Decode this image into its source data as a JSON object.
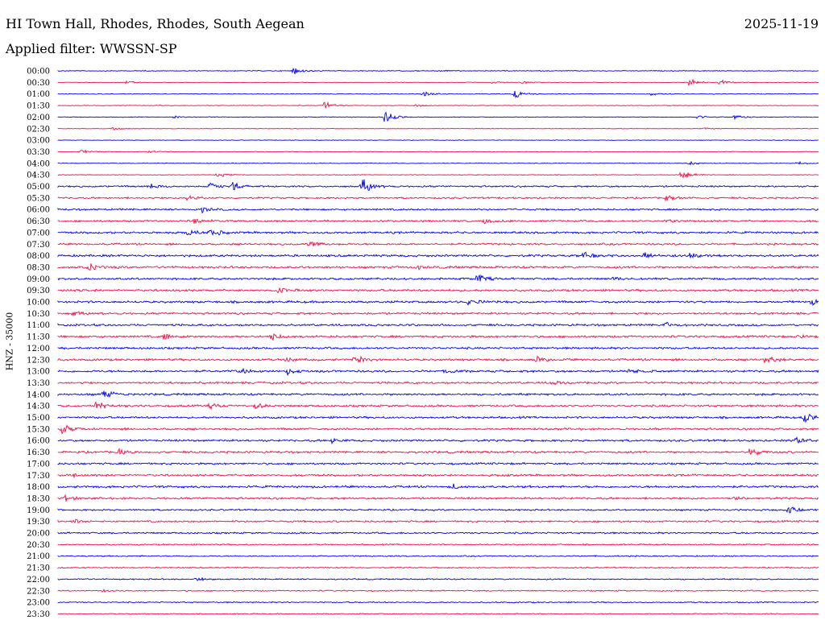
{
  "header": {
    "station": "HI Town Hall, Rhodes, Rhodes, South Aegean",
    "date": "2025-11-19",
    "filter": "Applied filter: WWSSN-SP"
  },
  "channel_label": "HNZ - 35000",
  "colors": {
    "odd_trace": "#0000ee",
    "even_trace": "#ee1144",
    "background": "#ffffff",
    "text": "#000000"
  },
  "chart_data": {
    "type": "line",
    "subtype": "helicorder",
    "ylabel": "HNZ - 35000",
    "rows": [
      {
        "label": "00:00",
        "color": "#0000ee",
        "noise": 0.6,
        "events": [
          {
            "x": 0.31,
            "a": 5
          },
          {
            "x": 0.5,
            "a": 1.5
          }
        ]
      },
      {
        "label": "00:30",
        "color": "#ee1144",
        "noise": 0.4,
        "events": [
          {
            "x": 0.09,
            "a": 2.5
          },
          {
            "x": 0.57,
            "a": 2
          },
          {
            "x": 0.61,
            "a": 2.5
          },
          {
            "x": 0.83,
            "a": 6
          },
          {
            "x": 0.87,
            "a": 6
          }
        ]
      },
      {
        "label": "01:00",
        "color": "#0000ee",
        "noise": 0.5,
        "events": [
          {
            "x": 0.48,
            "a": 4
          },
          {
            "x": 0.6,
            "a": 9
          },
          {
            "x": 0.78,
            "a": 2
          }
        ]
      },
      {
        "label": "01:30",
        "color": "#ee1144",
        "noise": 0.5,
        "events": [
          {
            "x": 0.35,
            "a": 6
          },
          {
            "x": 0.47,
            "a": 2
          }
        ]
      },
      {
        "label": "02:00",
        "color": "#0000ee",
        "noise": 0.5,
        "events": [
          {
            "x": 0.15,
            "a": 2
          },
          {
            "x": 0.43,
            "a": 11
          },
          {
            "x": 0.84,
            "a": 3
          },
          {
            "x": 0.89,
            "a": 5
          }
        ]
      },
      {
        "label": "02:30",
        "color": "#ee1144",
        "noise": 0.4,
        "events": [
          {
            "x": 0.07,
            "a": 2.5
          },
          {
            "x": 0.85,
            "a": 2
          }
        ]
      },
      {
        "label": "03:00",
        "color": "#0000ee",
        "noise": 0.4,
        "events": []
      },
      {
        "label": "03:30",
        "color": "#ee1144",
        "noise": 0.5,
        "events": [
          {
            "x": 0.03,
            "a": 3
          },
          {
            "x": 0.12,
            "a": 2
          }
        ]
      },
      {
        "label": "04:00",
        "color": "#0000ee",
        "noise": 0.5,
        "events": [
          {
            "x": 0.83,
            "a": 3
          },
          {
            "x": 0.97,
            "a": 3
          }
        ]
      },
      {
        "label": "04:30",
        "color": "#ee1144",
        "noise": 0.5,
        "events": [
          {
            "x": 0.21,
            "a": 4
          },
          {
            "x": 0.82,
            "a": 8
          }
        ]
      },
      {
        "label": "05:00",
        "color": "#0000ee",
        "noise": 1.2,
        "events": [
          {
            "x": 0.12,
            "a": 5
          },
          {
            "x": 0.2,
            "a": 6
          },
          {
            "x": 0.23,
            "a": 7
          },
          {
            "x": 0.4,
            "a": 13
          }
        ]
      },
      {
        "label": "05:30",
        "color": "#ee1144",
        "noise": 1.2,
        "events": [
          {
            "x": 0.17,
            "a": 4
          },
          {
            "x": 0.8,
            "a": 5
          }
        ]
      },
      {
        "label": "06:00",
        "color": "#0000ee",
        "noise": 1.3,
        "events": [
          {
            "x": 0.19,
            "a": 4
          }
        ]
      },
      {
        "label": "06:30",
        "color": "#ee1144",
        "noise": 1.4,
        "events": [
          {
            "x": 0.18,
            "a": 4
          },
          {
            "x": 0.56,
            "a": 5
          },
          {
            "x": 0.8,
            "a": 4
          }
        ]
      },
      {
        "label": "07:00",
        "color": "#0000ee",
        "noise": 1.5,
        "events": [
          {
            "x": 0.17,
            "a": 5
          },
          {
            "x": 0.2,
            "a": 7
          }
        ]
      },
      {
        "label": "07:30",
        "color": "#ee1144",
        "noise": 1.4,
        "events": [
          {
            "x": 0.33,
            "a": 5
          }
        ]
      },
      {
        "label": "08:00",
        "color": "#0000ee",
        "noise": 1.6,
        "events": [
          {
            "x": 0.69,
            "a": 5
          },
          {
            "x": 0.77,
            "a": 6
          },
          {
            "x": 0.83,
            "a": 4
          }
        ]
      },
      {
        "label": "08:30",
        "color": "#ee1144",
        "noise": 1.6,
        "events": [
          {
            "x": 0.04,
            "a": 5
          },
          {
            "x": 0.47,
            "a": 3
          }
        ]
      },
      {
        "label": "09:00",
        "color": "#0000ee",
        "noise": 1.5,
        "events": [
          {
            "x": 0.55,
            "a": 7
          },
          {
            "x": 0.73,
            "a": 3
          }
        ]
      },
      {
        "label": "09:30",
        "color": "#ee1144",
        "noise": 1.6,
        "events": [
          {
            "x": 0.29,
            "a": 4
          }
        ]
      },
      {
        "label": "10:00",
        "color": "#0000ee",
        "noise": 1.6,
        "events": [
          {
            "x": 0.54,
            "a": 4
          },
          {
            "x": 0.99,
            "a": 6
          }
        ]
      },
      {
        "label": "10:30",
        "color": "#ee1144",
        "noise": 1.5,
        "events": [
          {
            "x": 0.02,
            "a": 3
          }
        ]
      },
      {
        "label": "11:00",
        "color": "#0000ee",
        "noise": 1.5,
        "events": [
          {
            "x": 0.8,
            "a": 3
          }
        ]
      },
      {
        "label": "11:30",
        "color": "#ee1144",
        "noise": 1.6,
        "events": [
          {
            "x": 0.14,
            "a": 6
          },
          {
            "x": 0.28,
            "a": 6
          },
          {
            "x": 0.97,
            "a": 4
          }
        ]
      },
      {
        "label": "12:00",
        "color": "#0000ee",
        "noise": 1.5,
        "events": []
      },
      {
        "label": "12:30",
        "color": "#ee1144",
        "noise": 1.6,
        "events": [
          {
            "x": 0.3,
            "a": 4
          },
          {
            "x": 0.39,
            "a": 7
          },
          {
            "x": 0.63,
            "a": 5
          },
          {
            "x": 0.93,
            "a": 6
          }
        ]
      },
      {
        "label": "13:00",
        "color": "#0000ee",
        "noise": 1.6,
        "events": [
          {
            "x": 0.24,
            "a": 6
          },
          {
            "x": 0.3,
            "a": 6
          },
          {
            "x": 0.51,
            "a": 3
          },
          {
            "x": 0.75,
            "a": 3
          }
        ]
      },
      {
        "label": "13:30",
        "color": "#ee1144",
        "noise": 1.5,
        "events": [
          {
            "x": 0.65,
            "a": 4
          }
        ]
      },
      {
        "label": "14:00",
        "color": "#0000ee",
        "noise": 1.5,
        "events": [
          {
            "x": 0.06,
            "a": 9
          }
        ]
      },
      {
        "label": "14:30",
        "color": "#ee1144",
        "noise": 1.5,
        "events": [
          {
            "x": 0.05,
            "a": 7
          },
          {
            "x": 0.2,
            "a": 4
          },
          {
            "x": 0.26,
            "a": 4
          }
        ]
      },
      {
        "label": "15:00",
        "color": "#0000ee",
        "noise": 1.5,
        "events": [
          {
            "x": 0.98,
            "a": 9
          }
        ]
      },
      {
        "label": "15:30",
        "color": "#ee1144",
        "noise": 1.5,
        "events": [
          {
            "x": 0.005,
            "a": 8
          }
        ]
      },
      {
        "label": "16:00",
        "color": "#0000ee",
        "noise": 1.5,
        "events": [
          {
            "x": 0.36,
            "a": 3
          },
          {
            "x": 0.97,
            "a": 5
          }
        ]
      },
      {
        "label": "16:30",
        "color": "#ee1144",
        "noise": 1.5,
        "events": [
          {
            "x": 0.08,
            "a": 4
          },
          {
            "x": 0.91,
            "a": 7
          }
        ]
      },
      {
        "label": "17:00",
        "color": "#0000ee",
        "noise": 1.4,
        "events": []
      },
      {
        "label": "17:30",
        "color": "#ee1144",
        "noise": 1.5,
        "events": [
          {
            "x": 0.02,
            "a": 3
          }
        ]
      },
      {
        "label": "18:00",
        "color": "#0000ee",
        "noise": 1.6,
        "events": [
          {
            "x": 0.52,
            "a": 3
          }
        ]
      },
      {
        "label": "18:30",
        "color": "#ee1144",
        "noise": 1.5,
        "events": [
          {
            "x": 0.01,
            "a": 5
          },
          {
            "x": 0.89,
            "a": 3
          }
        ]
      },
      {
        "label": "19:00",
        "color": "#0000ee",
        "noise": 1.2,
        "events": [
          {
            "x": 0.96,
            "a": 6
          }
        ]
      },
      {
        "label": "19:30",
        "color": "#ee1144",
        "noise": 1.3,
        "events": [
          {
            "x": 0.02,
            "a": 3
          }
        ]
      },
      {
        "label": "20:00",
        "color": "#0000ee",
        "noise": 1.2,
        "events": []
      },
      {
        "label": "20:30",
        "color": "#ee1144",
        "noise": 1.0,
        "events": []
      },
      {
        "label": "21:00",
        "color": "#0000ee",
        "noise": 0.9,
        "events": []
      },
      {
        "label": "21:30",
        "color": "#ee1144",
        "noise": 0.9,
        "events": []
      },
      {
        "label": "22:00",
        "color": "#0000ee",
        "noise": 0.9,
        "events": [
          {
            "x": 0.18,
            "a": 3
          }
        ]
      },
      {
        "label": "22:30",
        "color": "#ee1144",
        "noise": 0.9,
        "events": [
          {
            "x": 0.06,
            "a": 2
          }
        ]
      },
      {
        "label": "23:00",
        "color": "#0000ee",
        "noise": 0.9,
        "events": []
      },
      {
        "label": "23:30",
        "color": "#ee1144",
        "noise": 0.8,
        "events": []
      }
    ]
  }
}
